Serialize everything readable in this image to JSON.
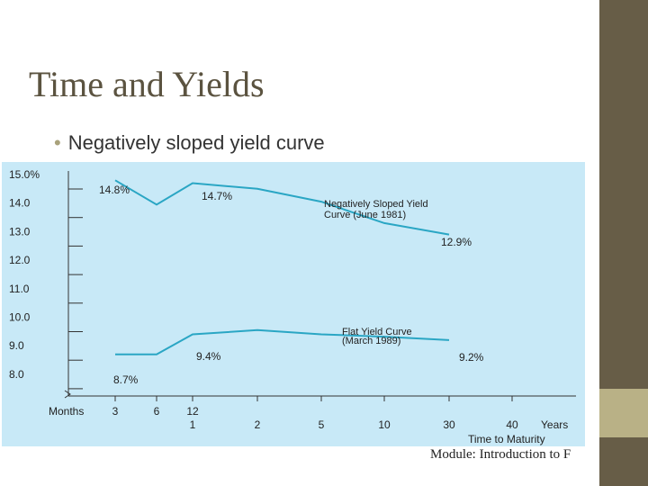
{
  "slide": {
    "title": "Time and Yields",
    "bullet": "Negatively sloped yield curve",
    "footer": "Module: Introduction to F"
  },
  "colors": {
    "line": "#2aa6c4",
    "panel": "#c8e9f7",
    "accent_bar": "#675d47"
  },
  "chart_data": {
    "type": "line",
    "title": "",
    "xlabel": "Time to Maturity",
    "ylabel": "",
    "y_ticks": [
      "15.0%",
      "14.0",
      "13.0",
      "12.0",
      "11.0",
      "10.0",
      "9.0",
      "8.0"
    ],
    "ylim": [
      7.0,
      15.0
    ],
    "x_ticks_months": {
      "label": "Months",
      "values": [
        "3",
        "6",
        "12"
      ]
    },
    "x_ticks_years": {
      "label": "Years",
      "values": [
        "1",
        "2",
        "5",
        "10",
        "30",
        "40"
      ]
    },
    "grid": false,
    "series": [
      {
        "name": "Negatively Sloped Yield Curve (June 1981)",
        "points": [
          {
            "x": "3 months",
            "y": 14.8
          },
          {
            "x": "6 months",
            "y": 13.95
          },
          {
            "x": "1 year",
            "y": 14.7
          },
          {
            "x": "2 years",
            "y": 14.5
          },
          {
            "x": "5 years",
            "y": 14.05
          },
          {
            "x": "10 years",
            "y": 13.3
          },
          {
            "x": "30 years",
            "y": 12.9
          }
        ]
      },
      {
        "name": "Flat Yield Curve (March 1989)",
        "points": [
          {
            "x": "3 months",
            "y": 8.7
          },
          {
            "x": "6 months",
            "y": 8.7
          },
          {
            "x": "1 year",
            "y": 9.4
          },
          {
            "x": "2 years",
            "y": 9.55
          },
          {
            "x": "5 years",
            "y": 9.4
          },
          {
            "x": "10 years",
            "y": 9.32
          },
          {
            "x": "30 years",
            "y": 9.2
          }
        ]
      }
    ],
    "data_labels": [
      "14.8%",
      "14.7%",
      "12.9%",
      "9.4%",
      "8.7%",
      "9.2%"
    ],
    "annotations": [
      "Negatively Sloped Yield",
      "Curve (June 1981)",
      "Flat Yield Curve",
      "(March 1989)"
    ]
  }
}
